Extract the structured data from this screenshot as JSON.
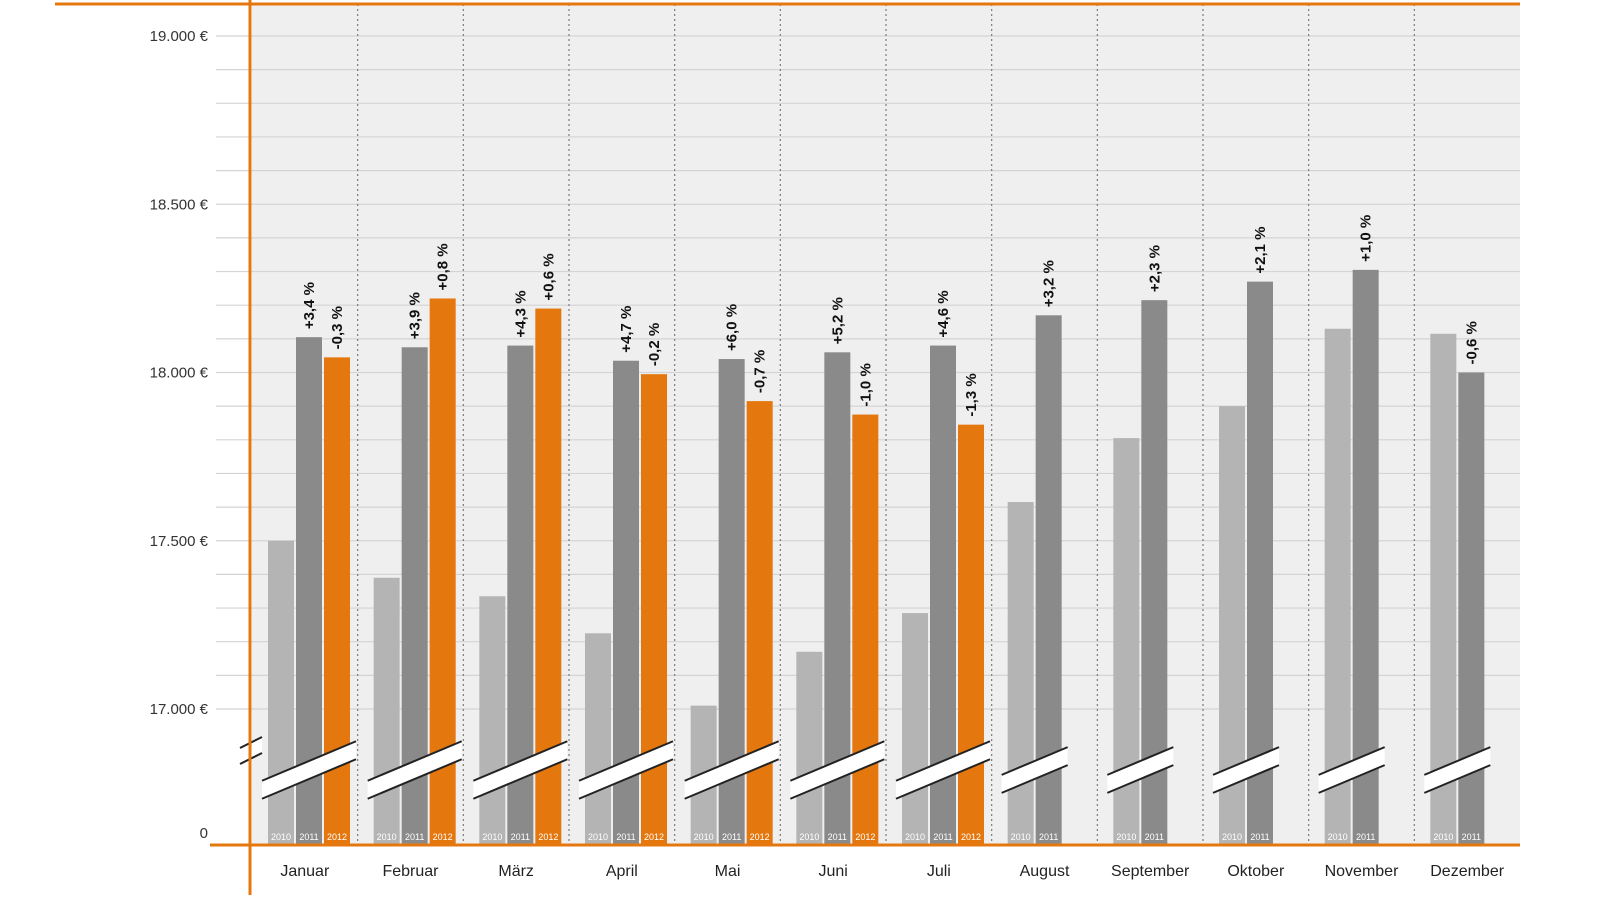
{
  "chart_data": {
    "type": "bar",
    "title": "",
    "xlabel": "",
    "ylabel": "",
    "ylim_display": [
      17000,
      19000
    ],
    "axis_break": true,
    "y_ticks": [
      {
        "value": 19000,
        "label": "19.000 €"
      },
      {
        "value": 18500,
        "label": "18.500 €"
      },
      {
        "value": 18000,
        "label": "18.000 €"
      },
      {
        "value": 17500,
        "label": "17.500 €"
      },
      {
        "value": 17000,
        "label": "17.000 €"
      },
      {
        "value": 0,
        "label": "0"
      }
    ],
    "categories": [
      "Januar",
      "Februar",
      "März",
      "April",
      "Mai",
      "Juni",
      "Juli",
      "August",
      "September",
      "Oktober",
      "November",
      "Dezember"
    ],
    "series": [
      {
        "name": "2010",
        "color": "#b4b4b4",
        "values": [
          17500,
          17390,
          17335,
          17225,
          17010,
          17170,
          17285,
          17615,
          17805,
          17900,
          18130,
          18115
        ]
      },
      {
        "name": "2011",
        "color": "#8a8a8a",
        "values": [
          18105,
          18075,
          18080,
          18035,
          18040,
          18060,
          18080,
          18170,
          18215,
          18270,
          18305,
          18000
        ],
        "change_labels": [
          "+3,4 %",
          "+3,9 %",
          "+4,3 %",
          "+4,7 %",
          "+6,0 %",
          "+5,2 %",
          "+4,6 %",
          "+3,2 %",
          "+2,3 %",
          "+2,1 %",
          "+1,0 %",
          "-0,6 %"
        ]
      },
      {
        "name": "2012",
        "color": "#e5770f",
        "values": [
          18045,
          18220,
          18190,
          17995,
          17915,
          17875,
          17845,
          null,
          null,
          null,
          null,
          null
        ],
        "change_labels": [
          "-0,3 %",
          "+0,8 %",
          "+0,6 %",
          "-0,2 %",
          "-0,7 %",
          "-1,0 %",
          "-1,3 %",
          null,
          null,
          null,
          null,
          null
        ]
      }
    ],
    "grid": true,
    "colors": {
      "axis": "#e5770f",
      "grid": "#d4d4d4",
      "background": "#efefef"
    }
  }
}
